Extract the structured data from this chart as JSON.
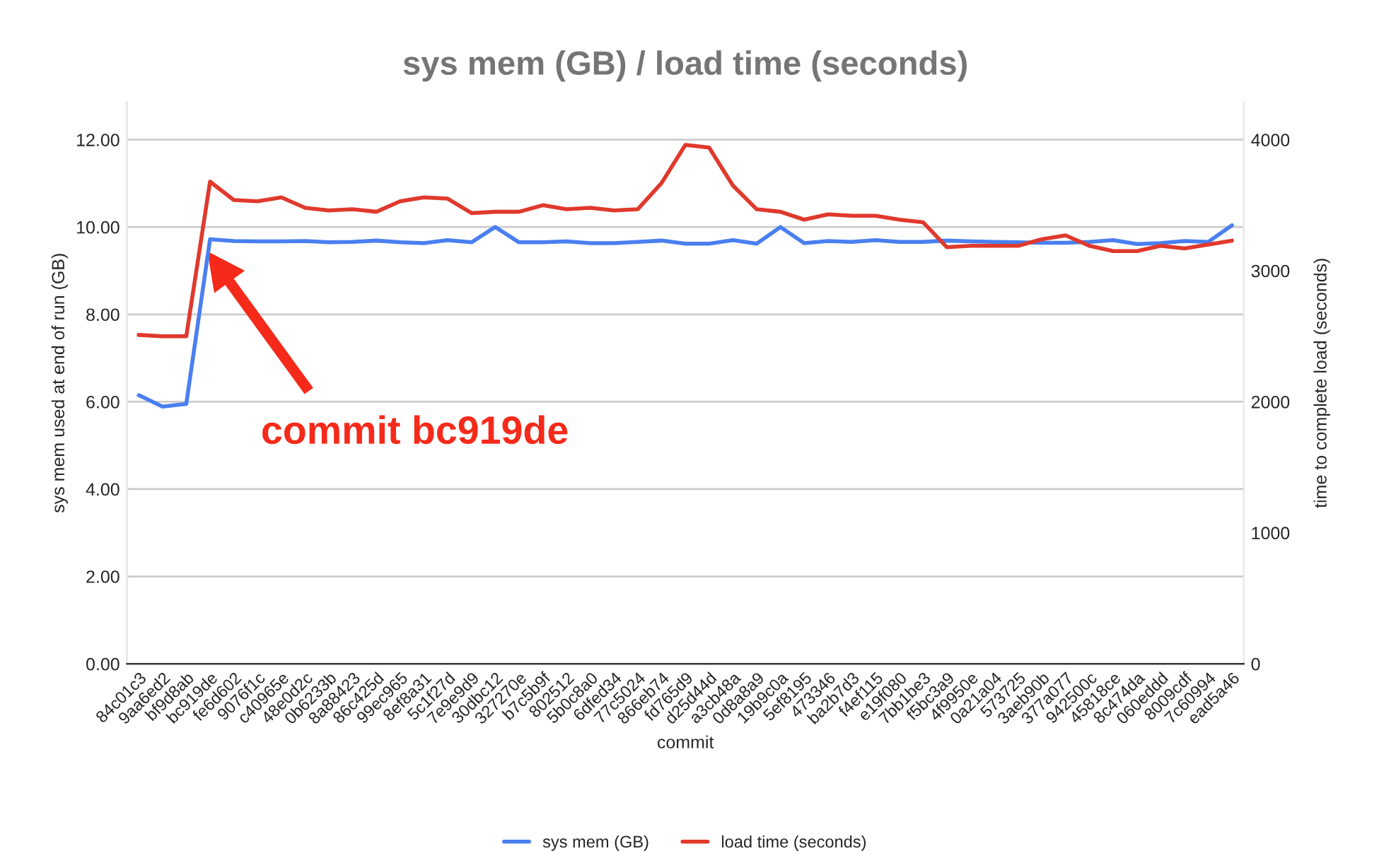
{
  "chart_data": {
    "type": "line",
    "title": "sys mem (GB) / load time (seconds)",
    "xlabel": "commit",
    "ylabel": "sys mem used at end of run (GB)",
    "y2label": "time to complete load (seconds)",
    "categories": [
      "84c01c3",
      "9aa6ed2",
      "bf9d8ab",
      "bc919de",
      "fe6d602",
      "9076f1c",
      "c40965e",
      "48e0d2c",
      "0b6233b",
      "8a88423",
      "86c425d",
      "99ec965",
      "8ef8a31",
      "5c1f27d",
      "7e9e9d9",
      "30dbc12",
      "327270e",
      "b7c5b9f",
      "802512",
      "5b0c8a0",
      "6dfed34",
      "77c5024",
      "866eb74",
      "fd765d9",
      "d25d44d",
      "a3cb48a",
      "0d8a8a9",
      "19b9c0a",
      "5ef8195",
      "473346",
      "ba2b7d3",
      "f4ef115",
      "e19f080",
      "7bb1be3",
      "f5bc3a9",
      "4f9950e",
      "0a21a04",
      "573725",
      "3aeb90b",
      "377a077",
      "942500c",
      "45818ce",
      "8c474da",
      "060eddd",
      "8009cdf",
      "7c60994",
      "ead5a46"
    ],
    "series": [
      {
        "name": "sys mem (GB)",
        "color": "#4a7ff0",
        "values": [
          6.15,
          5.89,
          5.95,
          9.72,
          9.68,
          9.67,
          9.67,
          9.68,
          9.65,
          9.66,
          9.69,
          9.65,
          9.63,
          9.7,
          9.65,
          10.0,
          9.65,
          9.65,
          9.67,
          9.63,
          9.63,
          9.66,
          9.69,
          9.62,
          9.62,
          9.7,
          9.62,
          10.0,
          9.63,
          9.68,
          9.66,
          9.7,
          9.66,
          9.66,
          9.69,
          9.67,
          9.66,
          9.65,
          9.64,
          9.64,
          9.66,
          9.7,
          9.61,
          9.63,
          9.68,
          9.66,
          10.04
        ]
      },
      {
        "name": "load time (seconds)",
        "color": "#e0392d",
        "axis": "y2",
        "values": [
          2510,
          2500,
          2500,
          3680,
          3540,
          3530,
          3560,
          3480,
          3460,
          3470,
          3450,
          3530,
          3560,
          3550,
          3440,
          3450,
          3450,
          3500,
          3470,
          3480,
          3460,
          3470,
          3670,
          3960,
          3940,
          3650,
          3470,
          3450,
          3390,
          3430,
          3420,
          3420,
          3390,
          3370,
          3180,
          3190,
          3190,
          3190,
          3240,
          3270,
          3190,
          3150,
          3150,
          3190,
          3170,
          3200,
          3230
        ]
      }
    ],
    "ylim": [
      0,
      12.86
    ],
    "yticks": [
      {
        "value": 0,
        "label": "0.00"
      },
      {
        "value": 2,
        "label": "2.00"
      },
      {
        "value": 4,
        "label": "4.00"
      },
      {
        "value": 6,
        "label": "6.00"
      },
      {
        "value": 8,
        "label": "8.00"
      },
      {
        "value": 10,
        "label": "10.00"
      },
      {
        "value": 12,
        "label": "12.00"
      }
    ],
    "y2lim": [
      0,
      4287
    ],
    "y2ticks": [
      0,
      1000,
      2000,
      3000,
      4000
    ],
    "grid": "y",
    "legend": "bottom",
    "marker": "none",
    "line_style": "solid",
    "annotations": [
      "commit bc919de"
    ]
  }
}
